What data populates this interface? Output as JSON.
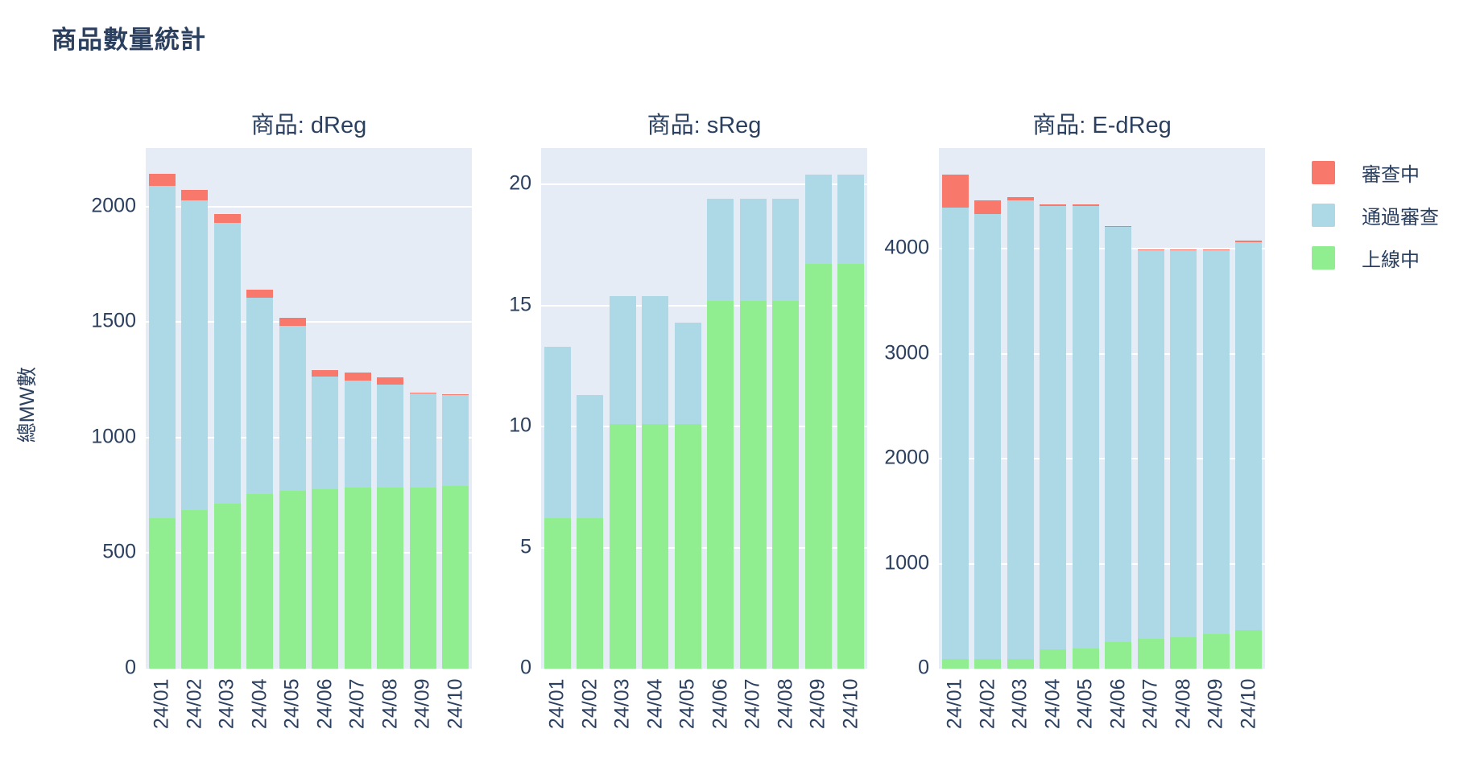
{
  "page_title": "商品數量統計",
  "y_axis_title": "總MW數",
  "colors": {
    "review": "#f8796c",
    "passed": "#add8e6",
    "online": "#90ee90",
    "plot_bg": "#e5ecf6",
    "grid": "#ffffff",
    "text": "#2b3f5f"
  },
  "legend": [
    {
      "key": "review",
      "label": "審查中"
    },
    {
      "key": "passed",
      "label": "通過審查"
    },
    {
      "key": "online",
      "label": "上線中"
    }
  ],
  "chart_data": [
    {
      "type": "bar",
      "stacked": true,
      "title": "商品: dReg",
      "categories": [
        "24/01",
        "24/02",
        "24/03",
        "24/04",
        "24/05",
        "24/06",
        "24/07",
        "24/08",
        "24/09",
        "24/10"
      ],
      "series": [
        {
          "key": "online",
          "name": "上線中",
          "values": [
            650,
            685,
            715,
            755,
            770,
            775,
            785,
            785,
            785,
            790
          ]
        },
        {
          "key": "passed",
          "name": "通過審查",
          "values": [
            1440,
            1340,
            1215,
            850,
            715,
            490,
            460,
            445,
            405,
            395
          ]
        },
        {
          "key": "review",
          "name": "審查中",
          "values": [
            50,
            47,
            37,
            35,
            33,
            26,
            37,
            29,
            6,
            4
          ]
        }
      ],
      "ylabel": "總MW數",
      "ylim": [
        0,
        2253
      ],
      "yticks": [
        0,
        500,
        1000,
        1500,
        2000
      ],
      "grid": true,
      "legend_position": "right"
    },
    {
      "type": "bar",
      "stacked": true,
      "title": "商品: sReg",
      "categories": [
        "24/01",
        "24/02",
        "24/03",
        "24/04",
        "24/05",
        "24/06",
        "24/07",
        "24/08",
        "24/09",
        "24/10"
      ],
      "series": [
        {
          "key": "online",
          "name": "上線中",
          "values": [
            6.2,
            6.2,
            10.1,
            10.1,
            10.1,
            15.2,
            15.2,
            15.2,
            16.7,
            16.7
          ]
        },
        {
          "key": "passed",
          "name": "通過審查",
          "values": [
            7.1,
            5.1,
            5.3,
            5.3,
            4.2,
            4.2,
            4.2,
            4.2,
            3.7,
            3.7
          ]
        },
        {
          "key": "review",
          "name": "審查中",
          "values": [
            0,
            0,
            0,
            0,
            0,
            0,
            0,
            0,
            0,
            0
          ]
        }
      ],
      "ylabel": "總MW數",
      "ylim": [
        0,
        21.5
      ],
      "yticks": [
        0,
        5,
        10,
        15,
        20
      ],
      "grid": true,
      "legend_position": "right"
    },
    {
      "type": "bar",
      "stacked": true,
      "title": "商品: E-dReg",
      "categories": [
        "24/01",
        "24/02",
        "24/03",
        "24/04",
        "24/05",
        "24/06",
        "24/07",
        "24/08",
        "24/09",
        "24/10"
      ],
      "series": [
        {
          "key": "online",
          "name": "上線中",
          "values": [
            90,
            90,
            95,
            185,
            190,
            255,
            285,
            300,
            330,
            370
          ]
        },
        {
          "key": "passed",
          "name": "通過審查",
          "values": [
            4300,
            4240,
            4370,
            4225,
            4215,
            3950,
            3700,
            3685,
            3655,
            3690
          ]
        },
        {
          "key": "review",
          "name": "審查中",
          "values": [
            320,
            130,
            25,
            15,
            15,
            15,
            10,
            10,
            10,
            15
          ]
        }
      ],
      "ylabel": "總MW數",
      "ylim": [
        0,
        4960
      ],
      "yticks": [
        0,
        1000,
        2000,
        3000,
        4000
      ],
      "grid": true,
      "legend_position": "right"
    }
  ]
}
